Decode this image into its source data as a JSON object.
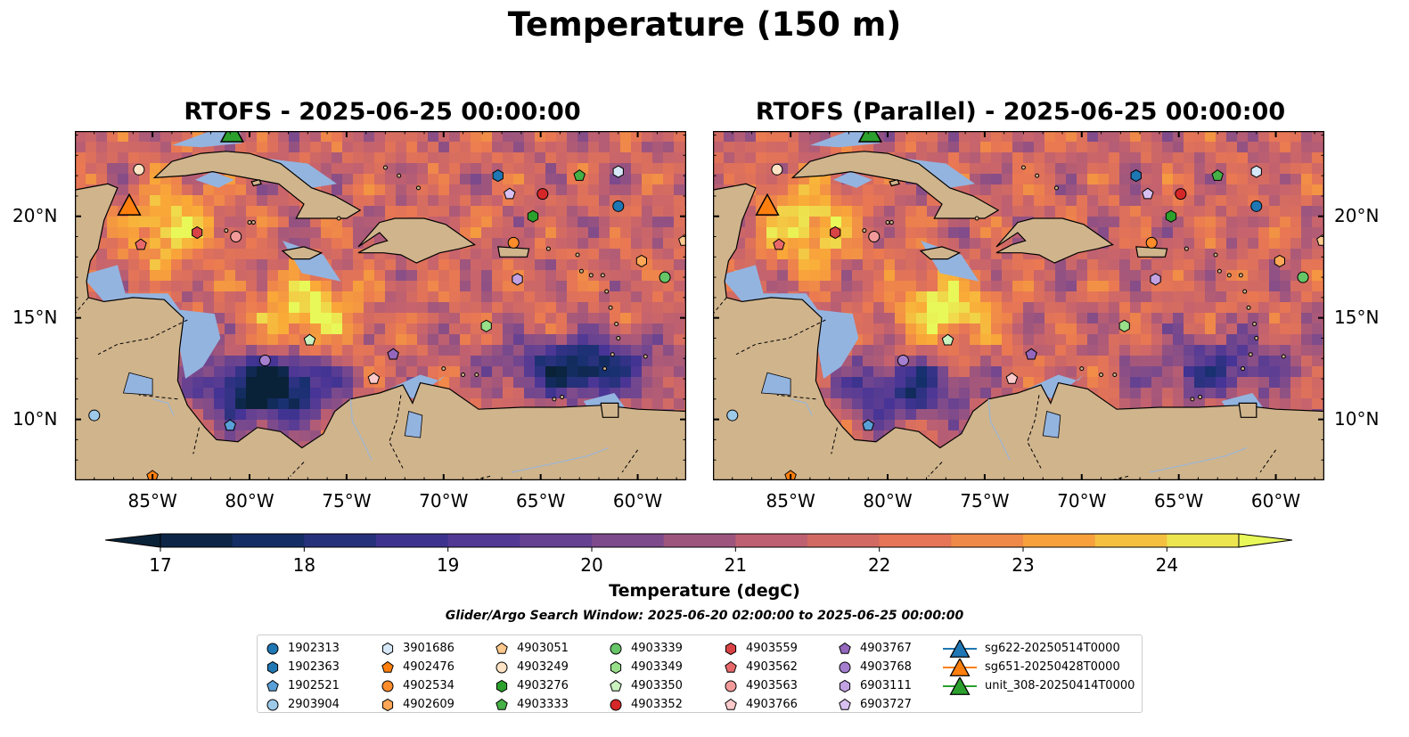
{
  "title": "Temperature (150 m)",
  "panels": [
    {
      "title": "RTOFS - 2025-06-25 00:00:00"
    },
    {
      "title": "RTOFS (Parallel) - 2025-06-25 00:00:00"
    }
  ],
  "map": {
    "extent": {
      "lon_min": -89,
      "lon_max": -57.5,
      "lat_min": 7,
      "lat_max": 24.2
    },
    "lon_ticks": [
      "85°W",
      "80°W",
      "75°W",
      "70°W",
      "65°W",
      "60°W"
    ],
    "lat_ticks": [
      "20°N",
      "15°N",
      "10°N"
    ],
    "colors": {
      "land": "#d0b48c",
      "shallow": "#94b4e0",
      "coast": "#000000"
    }
  },
  "colorbar": {
    "label": "Temperature (degC)",
    "ticks": [
      "17",
      "18",
      "19",
      "20",
      "21",
      "22",
      "23",
      "24"
    ],
    "range": [
      17,
      24.5
    ],
    "step": 0.5,
    "extend": "both"
  },
  "search_window": "Glider/Argo Search Window: 2025-06-20 02:00:00 to 2025-06-25 00:00:00",
  "legend": {
    "columns": [
      [
        {
          "label": "1902313",
          "marker": "circle",
          "color": "#1f77b4"
        },
        {
          "label": "1902363",
          "marker": "hexagon",
          "color": "#1f77b4"
        },
        {
          "label": "1902521",
          "marker": "pentagon",
          "color": "#5aa0d8"
        },
        {
          "label": "2903904",
          "marker": "circle",
          "color": "#9ecae9"
        }
      ],
      [
        {
          "label": "3901686",
          "marker": "hexagon",
          "color": "#d6e8f7"
        },
        {
          "label": "4902476",
          "marker": "pentagon",
          "color": "#ff7f0e"
        },
        {
          "label": "4902534",
          "marker": "circle",
          "color": "#ff8c2a"
        },
        {
          "label": "4902609",
          "marker": "hexagon",
          "color": "#ffa756"
        }
      ],
      [
        {
          "label": "4903051",
          "marker": "pentagon",
          "color": "#ffc98e"
        },
        {
          "label": "4903249",
          "marker": "circle",
          "color": "#ffe3c4"
        },
        {
          "label": "4903276",
          "marker": "hexagon",
          "color": "#2ca02c"
        },
        {
          "label": "4903333",
          "marker": "pentagon",
          "color": "#45b045"
        }
      ],
      [
        {
          "label": "4903339",
          "marker": "circle",
          "color": "#66c566"
        },
        {
          "label": "4903349",
          "marker": "hexagon",
          "color": "#98df8a"
        },
        {
          "label": "4903350",
          "marker": "pentagon",
          "color": "#c9f2bf"
        },
        {
          "label": "4903352",
          "marker": "circle",
          "color": "#d62728"
        }
      ],
      [
        {
          "label": "4903559",
          "marker": "hexagon",
          "color": "#d94345"
        },
        {
          "label": "4903562",
          "marker": "pentagon",
          "color": "#e8686a"
        },
        {
          "label": "4903563",
          "marker": "circle",
          "color": "#f29a9a"
        },
        {
          "label": "4903766",
          "marker": "pentagon",
          "color": "#fccaca"
        }
      ],
      [
        {
          "label": "4903767",
          "marker": "pentagon",
          "color": "#9467bd"
        },
        {
          "label": "4903768",
          "marker": "circle",
          "color": "#a57fcf"
        },
        {
          "label": "6903111",
          "marker": "hexagon",
          "color": "#c3a2e2"
        },
        {
          "label": "6903727",
          "marker": "pentagon",
          "color": "#d8c0f0"
        }
      ],
      [
        {
          "label": "sg622-20250514T0000",
          "marker": "triangle",
          "color": "#1f77b4"
        },
        {
          "label": "sg651-20250428T0000",
          "marker": "triangle",
          "color": "#ff7f0e"
        },
        {
          "label": "unit_308-20250414T0000",
          "marker": "triangle",
          "color": "#2ca02c"
        }
      ]
    ]
  },
  "observations": [
    {
      "id": "1902313",
      "lon": -61.0,
      "lat": 20.5
    },
    {
      "id": "1902363",
      "lon": -67.2,
      "lat": 22.0
    },
    {
      "id": "1902521",
      "lon": -81.0,
      "lat": 9.7
    },
    {
      "id": "2903904",
      "lon": -88.0,
      "lat": 10.2
    },
    {
      "id": "3901686",
      "lon": -61.0,
      "lat": 22.2
    },
    {
      "id": "4902476",
      "lon": -85.0,
      "lat": 7.2
    },
    {
      "id": "4902534",
      "lon": -66.4,
      "lat": 18.7
    },
    {
      "id": "4902609",
      "lon": -59.8,
      "lat": 17.8
    },
    {
      "id": "4903051",
      "lon": -57.6,
      "lat": 18.8
    },
    {
      "id": "4903249",
      "lon": -85.7,
      "lat": 22.3
    },
    {
      "id": "4903276",
      "lon": -65.4,
      "lat": 20.0
    },
    {
      "id": "4903333",
      "lon": -63.0,
      "lat": 22.0
    },
    {
      "id": "4903339",
      "lon": -58.6,
      "lat": 17.0
    },
    {
      "id": "4903349",
      "lon": -67.8,
      "lat": 14.6
    },
    {
      "id": "4903350",
      "lon": -76.9,
      "lat": 13.9
    },
    {
      "id": "4903352",
      "lon": -64.9,
      "lat": 21.1
    },
    {
      "id": "4903559",
      "lon": -82.7,
      "lat": 19.2
    },
    {
      "id": "4903562",
      "lon": -85.6,
      "lat": 18.6
    },
    {
      "id": "4903563",
      "lon": -80.7,
      "lat": 19.0
    },
    {
      "id": "4903766",
      "lon": -73.6,
      "lat": 12.0
    },
    {
      "id": "4903767",
      "lon": -72.6,
      "lat": 13.2
    },
    {
      "id": "4903768",
      "lon": -79.2,
      "lat": 12.9
    },
    {
      "id": "6903111",
      "lon": -66.2,
      "lat": 16.9
    },
    {
      "id": "6903727",
      "lon": -66.6,
      "lat": 21.1
    }
  ],
  "gliders": [
    {
      "id": "sg651-20250428T0000",
      "lon": -86.2,
      "lat": 20.5
    },
    {
      "id": "unit_308-20250414T0000",
      "lon": -80.9,
      "lat": 24.1
    }
  ]
}
